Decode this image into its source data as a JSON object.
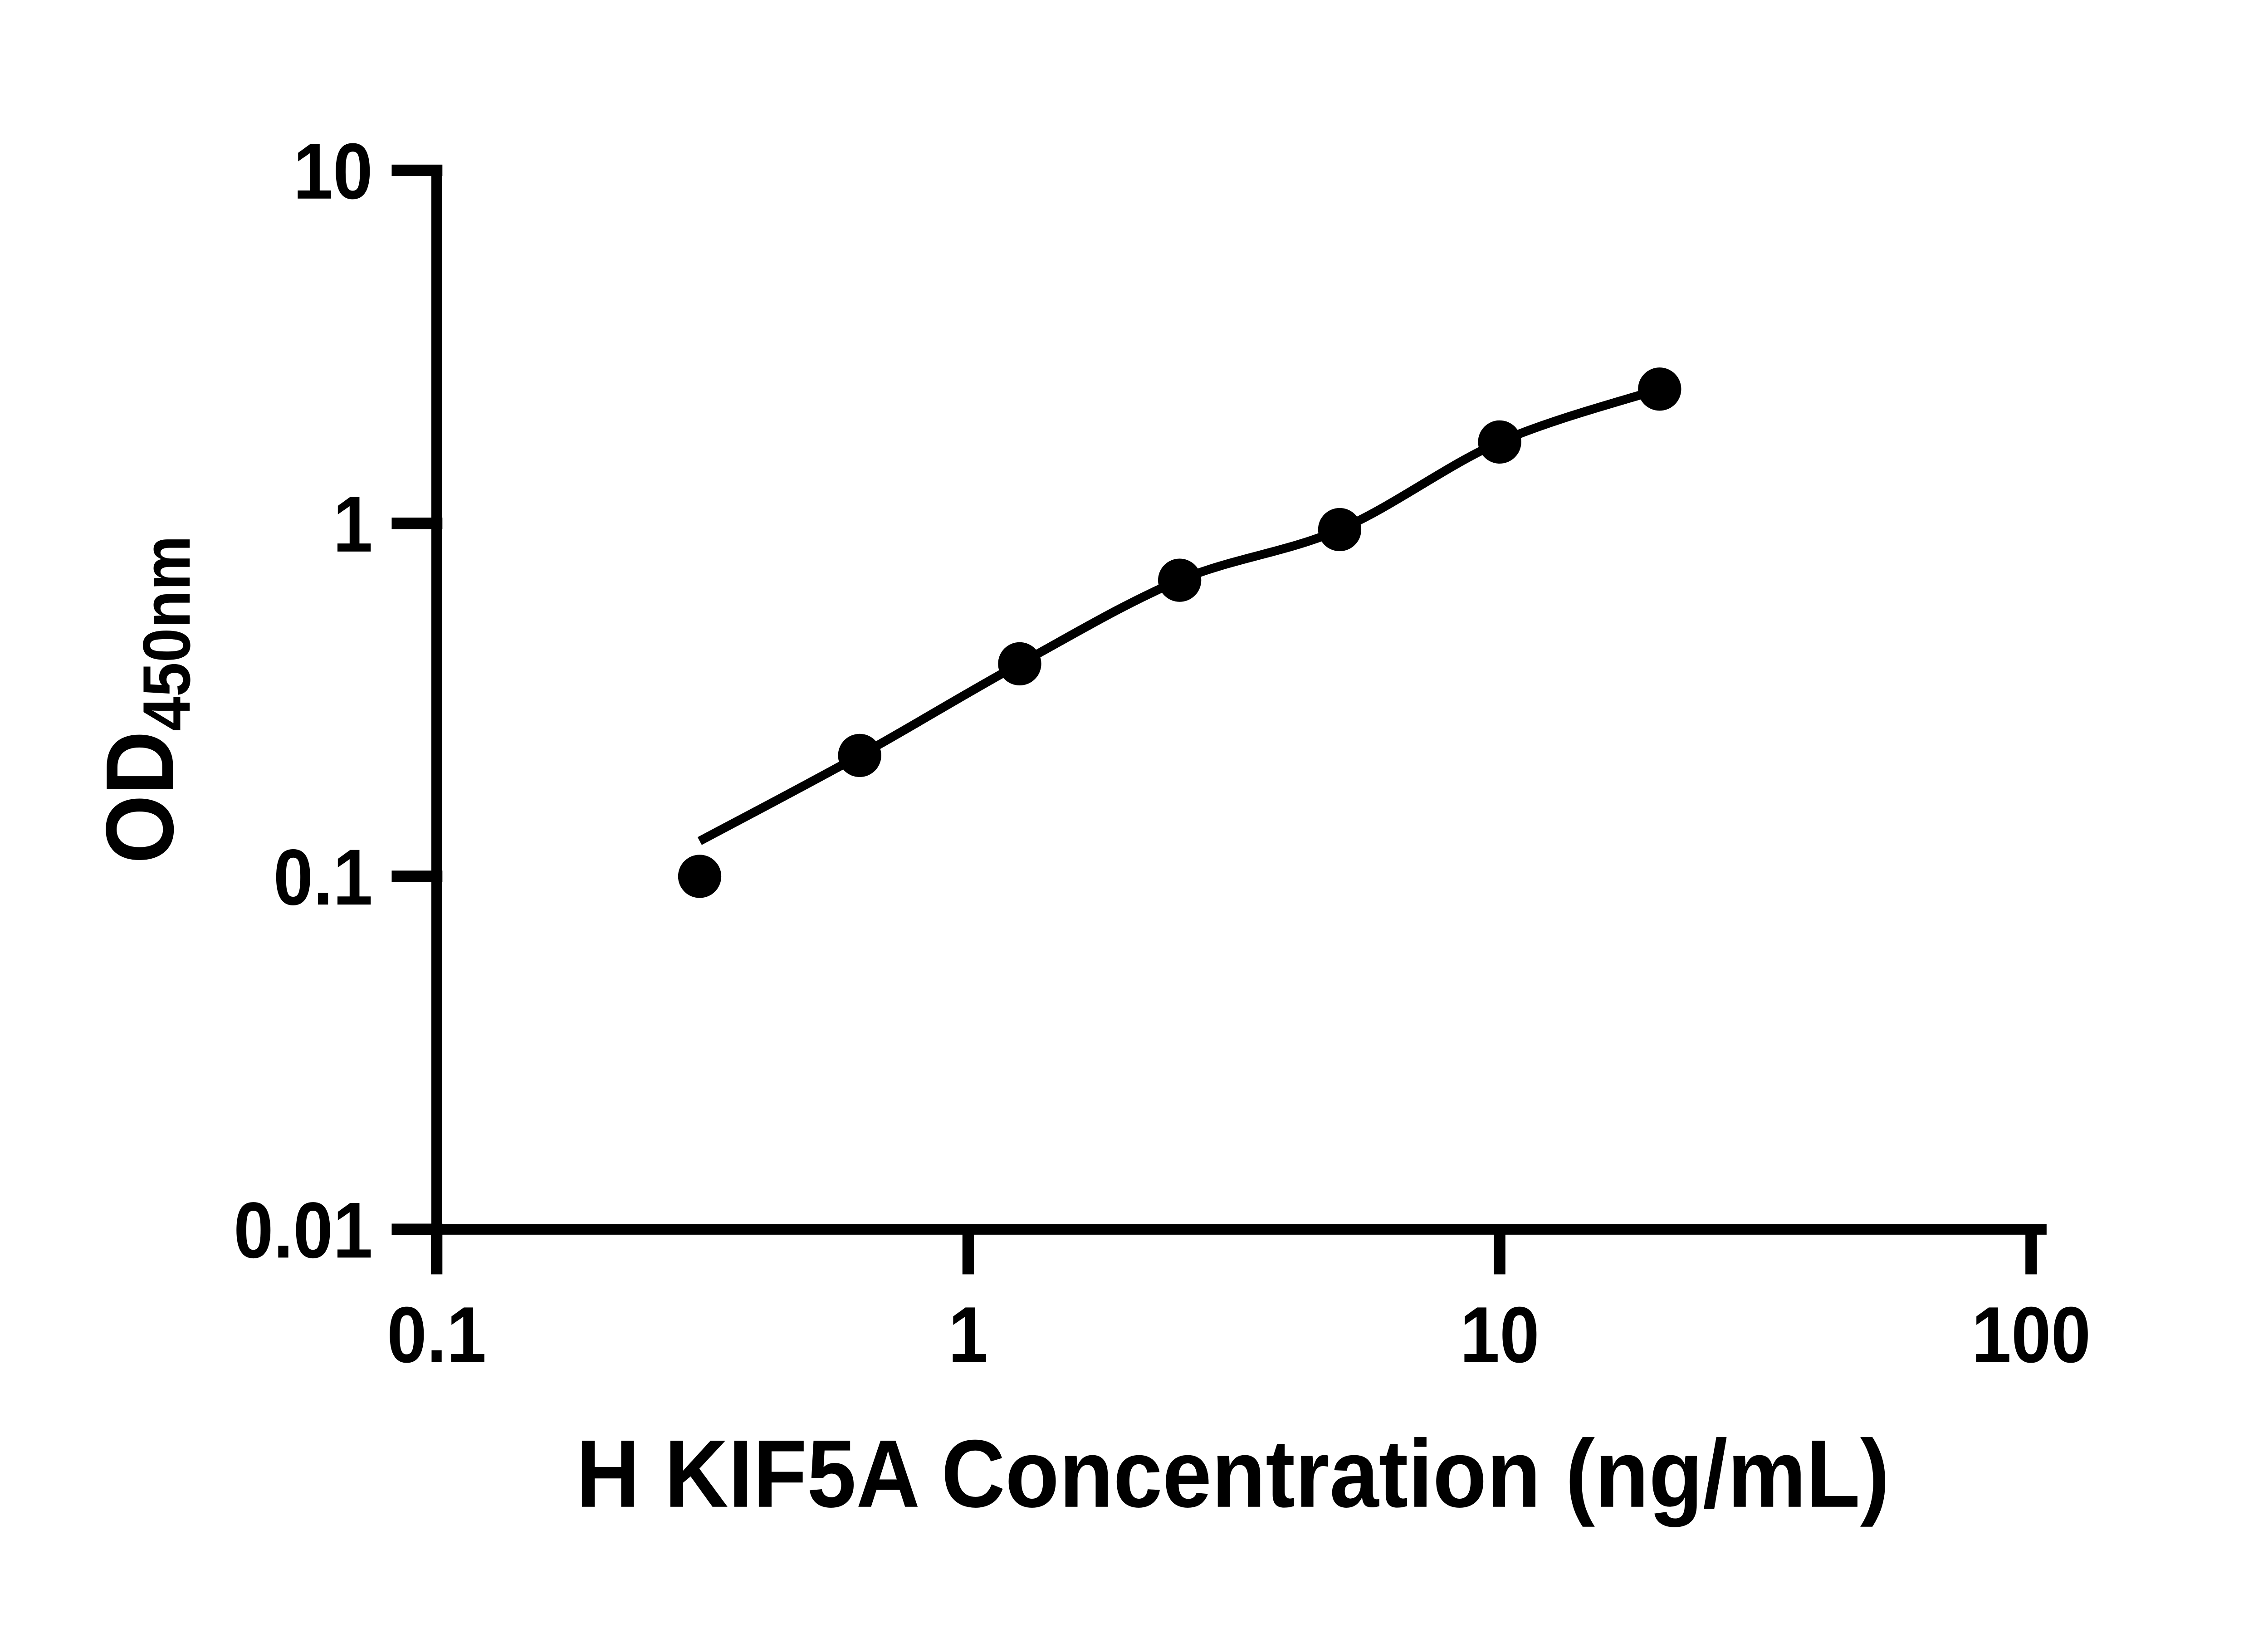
{
  "chart_data": {
    "type": "scatter",
    "title": "",
    "xlabel": "H KIF5A Concentration (ng/mL)",
    "ylabel": {
      "main": "OD",
      "sub": "450nm"
    },
    "x_scale": "log",
    "y_scale": "log",
    "xlim": [
      0.1,
      100
    ],
    "ylim": [
      0.01,
      10
    ],
    "x_ticks": [
      0.1,
      1,
      10,
      100
    ],
    "x_tick_labels": [
      "0.1",
      "1",
      "10",
      "100"
    ],
    "y_ticks": [
      10,
      1,
      0.1,
      0.01
    ],
    "y_tick_labels": [
      "10",
      "1",
      "0.1",
      "0.01"
    ],
    "grid": false,
    "legend": "none",
    "background_color": "#ffffff",
    "axis_color": "#000000",
    "marker_color": "#000000",
    "line_color": "#000000",
    "series": [
      {
        "marker": "filled-circle",
        "line": "smooth-fit",
        "points": [
          {
            "x": 0.3125,
            "y": 0.1
          },
          {
            "x": 0.625,
            "y": 0.22
          },
          {
            "x": 1.25,
            "y": 0.4
          },
          {
            "x": 2.5,
            "y": 0.69
          },
          {
            "x": 5,
            "y": 0.96
          },
          {
            "x": 10,
            "y": 1.7
          },
          {
            "x": 20,
            "y": 2.4
          }
        ]
      }
    ]
  }
}
